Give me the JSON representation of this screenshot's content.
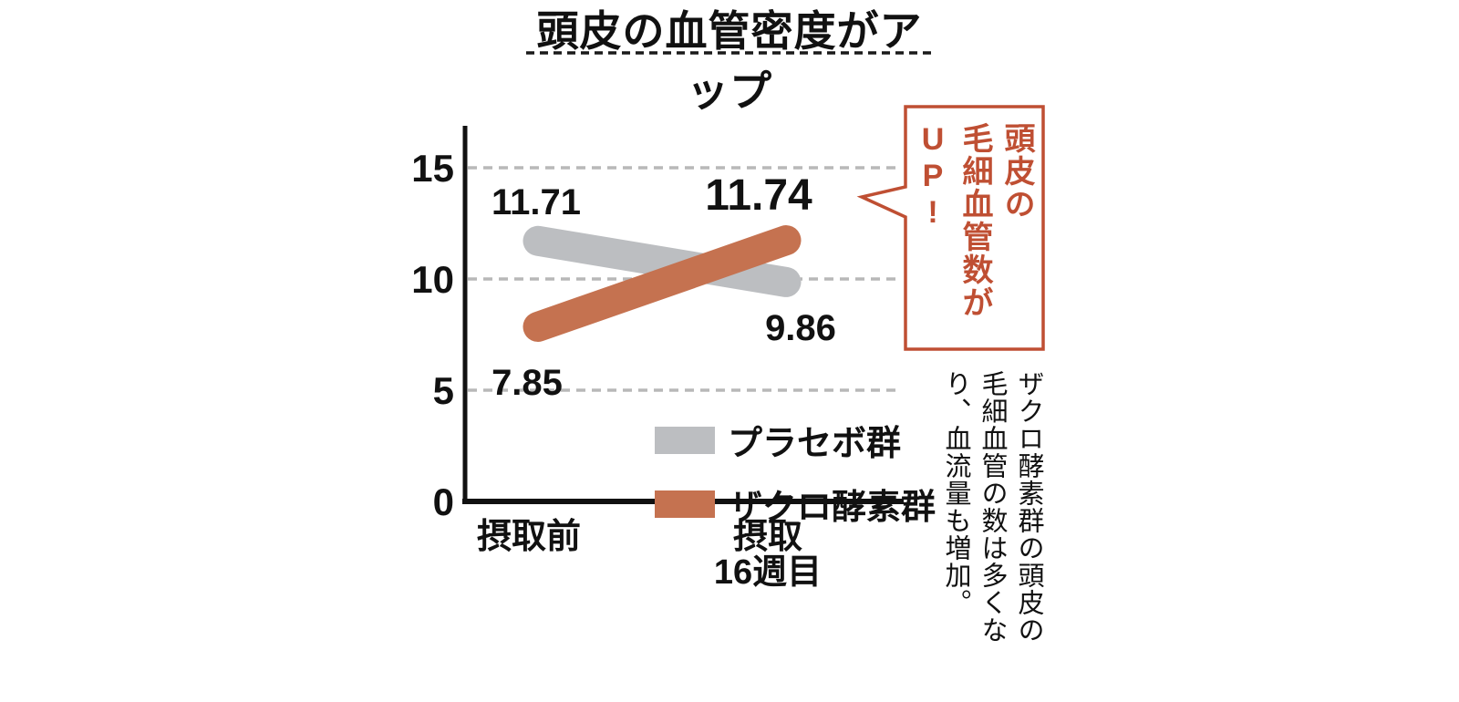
{
  "title": "頭皮の血管密度がアップ",
  "chart_data": {
    "type": "line",
    "categories": [
      "摂取前",
      "摂取\n16週目"
    ],
    "series": [
      {
        "name": "プラセボ群",
        "color": "#bcbec1",
        "values": [
          11.71,
          9.86
        ]
      },
      {
        "name": "ザクロ酵素群",
        "color": "#c57250",
        "values": [
          7.85,
          11.74
        ]
      }
    ],
    "ylim": [
      0,
      17
    ],
    "yticks": [
      15,
      10,
      5,
      0
    ],
    "grid": "horizontal dashed lines at y=5,10,15",
    "legend_position": "inside lower right",
    "axis_color": "#111111",
    "gridline_color": "#b8b8b8"
  },
  "callout": {
    "text": "頭皮の\n毛細血管数が\nUP!",
    "color": "#bf4f33"
  },
  "side_note": "ザクロ酵素群の頭皮の\n毛細血管の数は多くな\nり、血流量も増加。"
}
